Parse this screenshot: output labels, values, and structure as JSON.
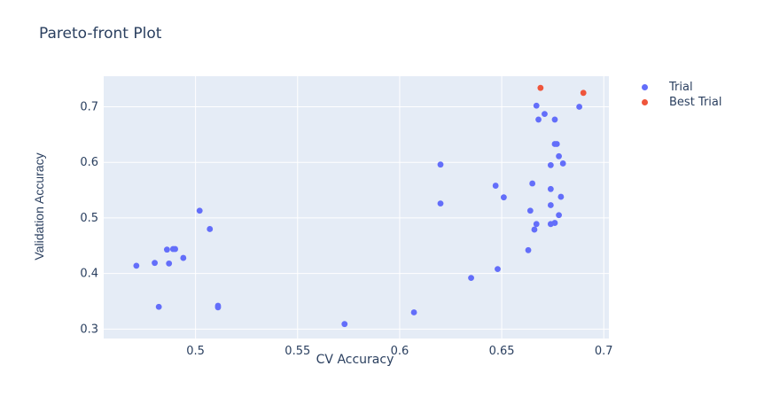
{
  "chart_data": {
    "type": "scatter",
    "title": "Pareto-front Plot",
    "xlabel": "CV Accuracy",
    "ylabel": "Validation Accuracy",
    "xlim": [
      0.455,
      0.7025
    ],
    "ylim": [
      0.283,
      0.755
    ],
    "xticks": [
      "0.5",
      "0.55",
      "0.6",
      "0.65",
      "0.7"
    ],
    "yticks": [
      "0.3",
      "0.4",
      "0.5",
      "0.6",
      "0.7"
    ],
    "xtick_values": [
      0.5,
      0.55,
      0.6,
      0.65,
      0.7
    ],
    "ytick_values": [
      0.3,
      0.4,
      0.5,
      0.6,
      0.7
    ],
    "grid": true,
    "legend_position": "top-right",
    "series": [
      {
        "name": "Trial",
        "color": "#636efa",
        "points": [
          [
            0.471,
            0.414
          ],
          [
            0.48,
            0.419
          ],
          [
            0.482,
            0.34
          ],
          [
            0.486,
            0.443
          ],
          [
            0.487,
            0.418
          ],
          [
            0.489,
            0.444
          ],
          [
            0.49,
            0.444
          ],
          [
            0.494,
            0.428
          ],
          [
            0.502,
            0.513
          ],
          [
            0.507,
            0.48
          ],
          [
            0.511,
            0.342
          ],
          [
            0.511,
            0.339
          ],
          [
            0.573,
            0.309
          ],
          [
            0.607,
            0.33
          ],
          [
            0.62,
            0.596
          ],
          [
            0.62,
            0.526
          ],
          [
            0.635,
            0.392
          ],
          [
            0.647,
            0.558
          ],
          [
            0.648,
            0.408
          ],
          [
            0.651,
            0.537
          ],
          [
            0.663,
            0.442
          ],
          [
            0.664,
            0.513
          ],
          [
            0.665,
            0.562
          ],
          [
            0.666,
            0.479
          ],
          [
            0.667,
            0.702
          ],
          [
            0.667,
            0.489
          ],
          [
            0.668,
            0.677
          ],
          [
            0.671,
            0.687
          ],
          [
            0.674,
            0.595
          ],
          [
            0.674,
            0.552
          ],
          [
            0.674,
            0.523
          ],
          [
            0.674,
            0.489
          ],
          [
            0.676,
            0.677
          ],
          [
            0.676,
            0.633
          ],
          [
            0.676,
            0.491
          ],
          [
            0.677,
            0.633
          ],
          [
            0.678,
            0.611
          ],
          [
            0.678,
            0.505
          ],
          [
            0.679,
            0.538
          ],
          [
            0.68,
            0.598
          ],
          [
            0.688,
            0.7
          ]
        ]
      },
      {
        "name": "Best Trial",
        "color": "#ef553b",
        "points": [
          [
            0.669,
            0.734
          ],
          [
            0.69,
            0.725
          ]
        ]
      }
    ]
  }
}
